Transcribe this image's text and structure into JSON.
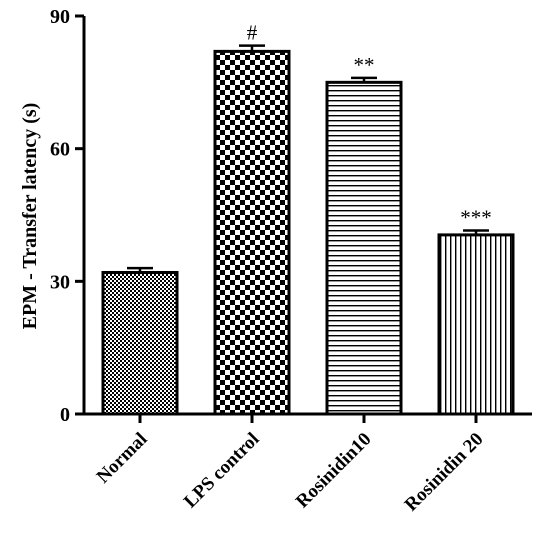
{
  "chart_data": {
    "type": "bar",
    "title": "",
    "xlabel": "",
    "ylabel": "EPM - Transfer latency (s)",
    "ylim": [
      0,
      90
    ],
    "yticks": [
      0,
      30,
      60,
      90
    ],
    "grid": false,
    "legend": "none",
    "categories": [
      "Normal",
      "LPS control",
      "Rosinidin10",
      "Rosinidin 20"
    ],
    "values": [
      32,
      82,
      75,
      40.5
    ],
    "errors": [
      1.0,
      1.3,
      1.0,
      1.0
    ],
    "significance": [
      "",
      "#",
      "**",
      "***"
    ],
    "patterns": [
      "fine-checker",
      "checker",
      "horizontal-lines",
      "vertical-lines"
    ],
    "colors": {
      "fill": "#000000",
      "background": "#ffffff"
    }
  }
}
